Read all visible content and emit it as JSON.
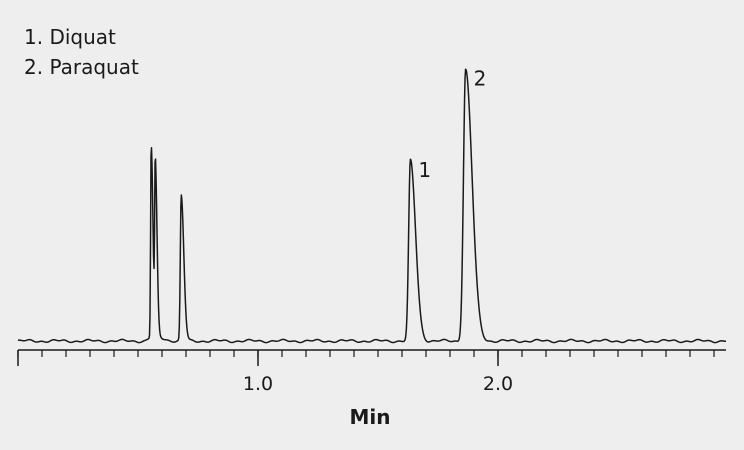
{
  "chart_data": {
    "type": "line",
    "legend": {
      "placement": "top-left",
      "entries": [
        "1. Diquat",
        "2. Paraquat"
      ]
    },
    "xlabel": "Min",
    "xlim": [
      0.0,
      2.95
    ],
    "x_ticks": [
      {
        "value": 1.0,
        "label": "1.0"
      },
      {
        "value": 2.0,
        "label": "2.0"
      }
    ],
    "minor_tick_step": 0.1,
    "ylim": [
      0,
      100
    ],
    "baseline": 0,
    "grid": false,
    "peaks": [
      {
        "x": 0.56,
        "height": 2,
        "width": 0.02
      },
      {
        "x": 0.555,
        "height": 71,
        "width": 0.004
      },
      {
        "x": 0.572,
        "height": 63,
        "width": 0.004
      },
      {
        "x": 0.68,
        "height": 54,
        "width": 0.006
      },
      {
        "x": 1.635,
        "height": 67,
        "width": 0.012,
        "label": "1"
      },
      {
        "x": 1.865,
        "height": 101,
        "width": 0.015,
        "label": "2"
      }
    ]
  }
}
